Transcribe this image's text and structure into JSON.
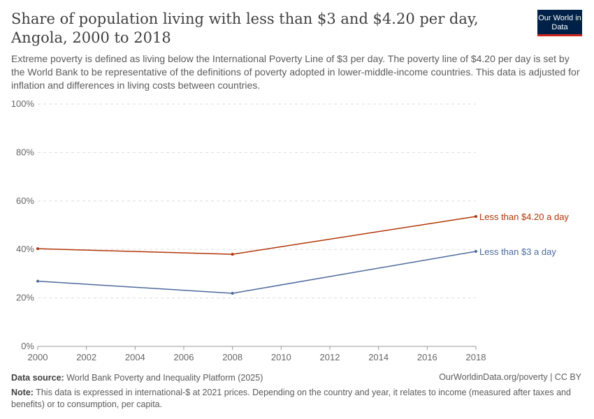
{
  "header": {
    "title": "Share of population living with less than $3 and $4.20 per day, Angola, 2000 to 2018",
    "subtitle": "Extreme poverty is defined as living below the International Poverty Line of $3 per day. The poverty line of $4.20 per day is set by the World Bank to be representative of the definitions of poverty adopted in lower-middle-income countries. This data is adjusted for inflation and differences in living costs between countries.",
    "logo": "Our World in Data"
  },
  "chart_data": {
    "type": "line",
    "x": [
      2000,
      2008,
      2018
    ],
    "series": [
      {
        "name": "Less than $4.20 a day",
        "values": [
          40.3,
          38.0,
          53.6
        ],
        "color": "#b13507"
      },
      {
        "name": "Less than $3 a day",
        "values": [
          26.9,
          21.9,
          39.2
        ],
        "color": "#4c6a9c"
      }
    ],
    "ylim": [
      0,
      100
    ],
    "yticks": [
      "0%",
      "20%",
      "40%",
      "60%",
      "80%",
      "100%"
    ],
    "xticks": [
      "2000",
      "2002",
      "2004",
      "2006",
      "2008",
      "2010",
      "2012",
      "2014",
      "2016",
      "2018"
    ],
    "grid": true,
    "legend": "inline-right"
  },
  "footer": {
    "source_label": "Data source:",
    "source": "World Bank Poverty and Inequality Platform (2025)",
    "license": "OurWorldinData.org/poverty | CC BY",
    "note_label": "Note:",
    "note": "This data is expressed in international-$ at 2021 prices. Depending on the country and year, it relates to income (measured after taxes and benefits) or to consumption, per capita."
  }
}
